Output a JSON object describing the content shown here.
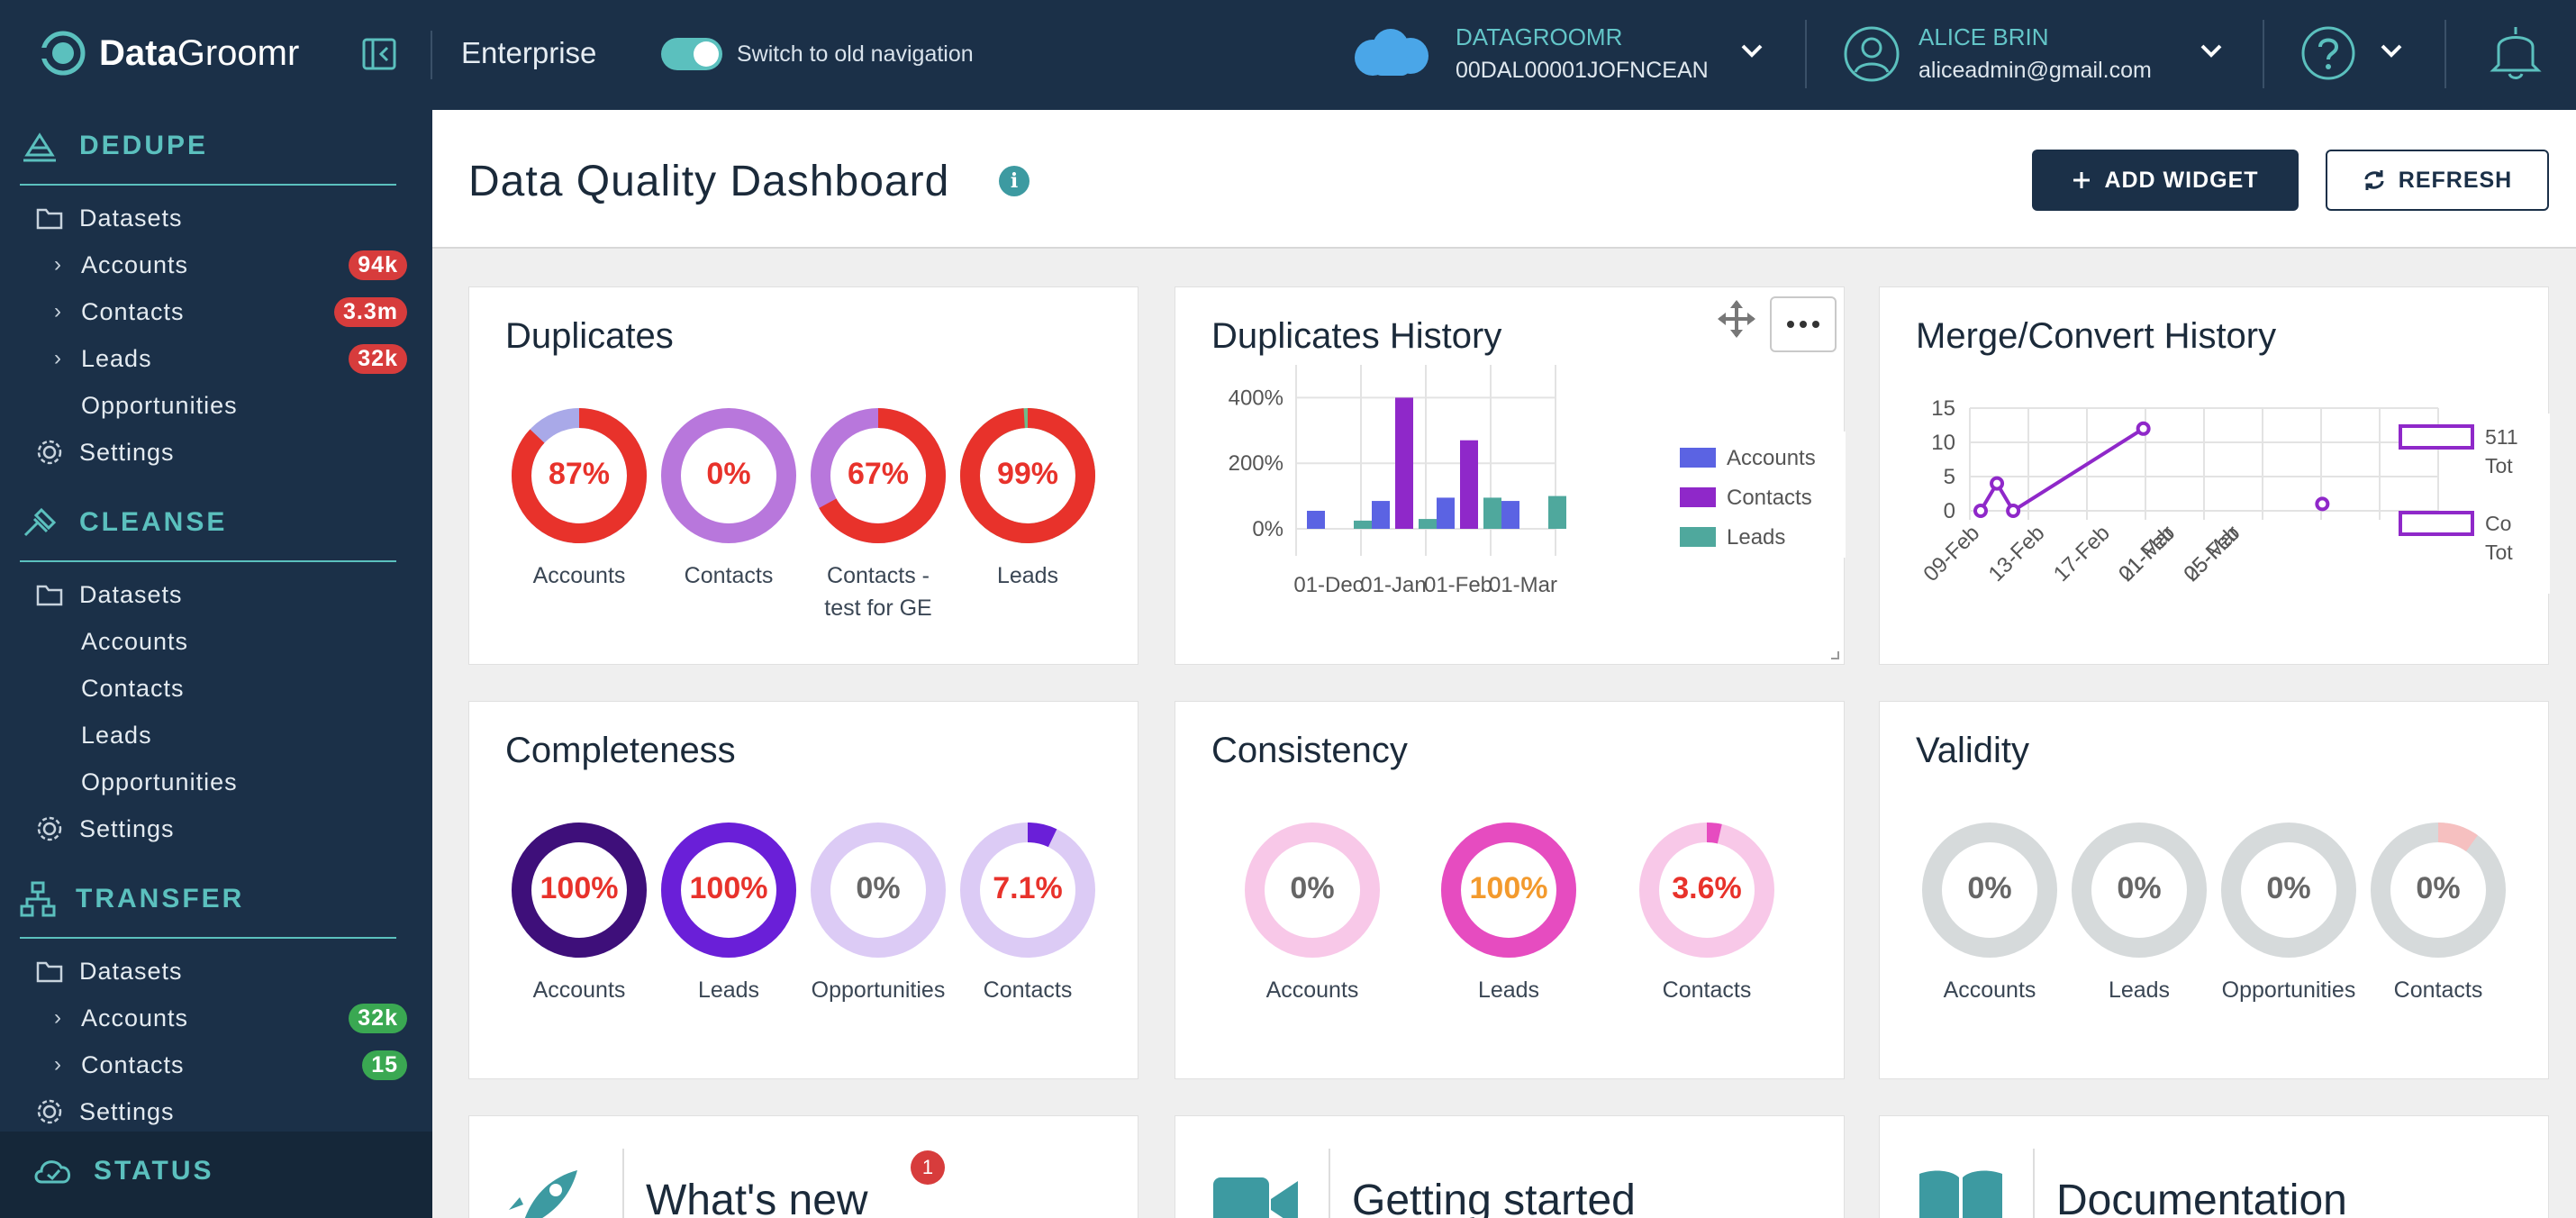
{
  "topbar": {
    "logo_bold": "Data",
    "logo_light": "Groomr",
    "edition": "Enterprise",
    "toggle_label": "Switch to old navigation",
    "org_name": "DATAGROOMR",
    "org_id": "00DAL00001JOFNCEAN",
    "user_name": "ALICE BRIN",
    "user_email": "aliceadmin@gmail.com"
  },
  "sidebar": {
    "dedupe": {
      "title": "DEDUPE",
      "datasets": "Datasets",
      "items": [
        {
          "label": "Accounts",
          "badge": "94k"
        },
        {
          "label": "Contacts",
          "badge": "3.3m"
        },
        {
          "label": "Leads",
          "badge": "32k"
        },
        {
          "label": "Opportunities"
        }
      ],
      "settings": "Settings"
    },
    "cleanse": {
      "title": "CLEANSE",
      "datasets": "Datasets",
      "items": [
        {
          "label": "Accounts"
        },
        {
          "label": "Contacts"
        },
        {
          "label": "Leads"
        },
        {
          "label": "Opportunities"
        }
      ],
      "settings": "Settings"
    },
    "transfer": {
      "title": "TRANSFER",
      "datasets": "Datasets",
      "items": [
        {
          "label": "Accounts",
          "badge": "32k"
        },
        {
          "label": "Contacts",
          "badge": "15"
        }
      ],
      "settings": "Settings"
    },
    "status": "STATUS"
  },
  "header": {
    "title": "Data Quality Dashboard",
    "info": "i",
    "add_widget": "ADD WIDGET",
    "refresh": "REFRESH"
  },
  "cards": {
    "duplicates": {
      "title": "Duplicates",
      "donuts": [
        {
          "pct": "87%",
          "label": "Accounts",
          "fill": 0.87
        },
        {
          "pct": "0%",
          "label": "Contacts",
          "fill": 0
        },
        {
          "pct": "67%",
          "label": "Contacts - test for GE",
          "fill": 0.67
        },
        {
          "pct": "99%",
          "label": "Leads",
          "fill": 0.99
        }
      ]
    },
    "dup_history": {
      "title": "Duplicates History"
    },
    "merge_history": {
      "title": "Merge/Convert History"
    },
    "completeness": {
      "title": "Completeness",
      "donuts": [
        {
          "pct": "100%",
          "label": "Accounts",
          "fill": 1
        },
        {
          "pct": "100%",
          "label": "Leads",
          "fill": 1
        },
        {
          "pct": "0%",
          "label": "Opportunities",
          "fill": 0
        },
        {
          "pct": "7.1%",
          "label": "Contacts",
          "fill": 0.071
        }
      ]
    },
    "consistency": {
      "title": "Consistency",
      "donuts": [
        {
          "pct": "0%",
          "label": "Accounts",
          "fill": 0
        },
        {
          "pct": "100%",
          "label": "Leads",
          "fill": 1
        },
        {
          "pct": "3.6%",
          "label": "Contacts",
          "fill": 0.036
        }
      ]
    },
    "validity": {
      "title": "Validity",
      "donuts": [
        {
          "pct": "0%",
          "label": "Accounts",
          "fill": 0
        },
        {
          "pct": "0%",
          "label": "Leads",
          "fill": 0
        },
        {
          "pct": "0%",
          "label": "Opportunities",
          "fill": 0
        },
        {
          "pct": "0%",
          "label": "Contacts",
          "fill": 0
        }
      ]
    },
    "whats_new": {
      "title": "What's new",
      "badge": "1"
    },
    "getting_started": {
      "title": "Getting started"
    },
    "documentation": {
      "title": "Documentation"
    }
  },
  "chart_data": [
    {
      "type": "bar",
      "categories": [
        "01-Dec",
        "01-Jan",
        "01-Feb",
        "01-Mar"
      ],
      "yticks": [
        "400%",
        "200%",
        "0%"
      ],
      "series": [
        {
          "name": "Accounts",
          "color": "#5b63e3",
          "values": [
            55,
            85,
            95,
            85
          ]
        },
        {
          "name": "Contacts",
          "color": "#8f28c9",
          "values": [
            0,
            400,
            270,
            0
          ]
        },
        {
          "name": "Leads",
          "color": "#4fa89d",
          "values": [
            25,
            30,
            95,
            100
          ]
        }
      ],
      "ylim": [
        0,
        500
      ]
    },
    {
      "type": "line",
      "x": [
        "09-Feb",
        "13-Feb",
        "17-Feb",
        "21-Feb",
        "25-Feb",
        "01-Mar",
        "05-Mar"
      ],
      "yticks": [
        "15",
        "10",
        "5",
        "0"
      ],
      "ylim": [
        0,
        15
      ],
      "series": [
        {
          "name": "511",
          "sub": "Tot",
          "color": "#8f28c9",
          "points": [
            [
              "09-Feb",
              0
            ],
            [
              "10-Feb",
              4
            ],
            [
              "11-Feb",
              0
            ],
            [
              "19-Feb",
              12
            ],
            [
              "10-Mar",
              1
            ]
          ]
        },
        {
          "name": "Co",
          "sub": "Tot",
          "color": "#8f28c9"
        }
      ]
    }
  ],
  "colors": {
    "navy": "#1b3048",
    "teal": "#5bc0be",
    "red": "#e8322b"
  }
}
